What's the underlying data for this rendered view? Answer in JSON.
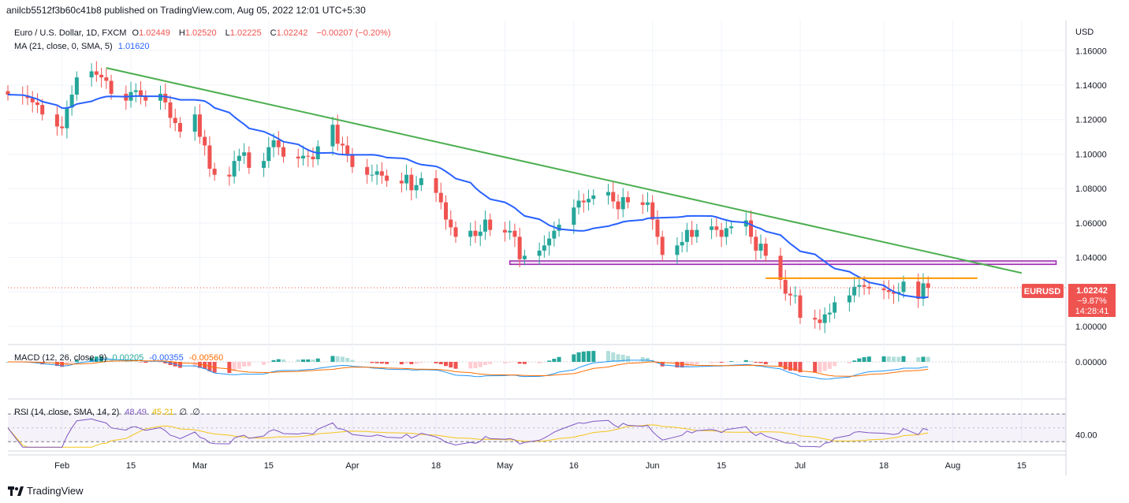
{
  "header": {
    "published": "anilcb5512f3b60c41b8 published on TradingView.com, Aug 05, 2022 12:01 UTC+5:30"
  },
  "legend": {
    "symbol": "Euro / U.S. Dollar, 1D, FXCM",
    "o_label": "O",
    "o_value": "1.02449",
    "h_label": "H",
    "h_value": "1.02520",
    "l_label": "L",
    "l_value": "1.02225",
    "c_label": "C",
    "c_value": "1.02242",
    "change": "−0.00207 (−0.20%)",
    "ma_label": "MA (21, close, 0, SMA, 5)",
    "ma_value": "1.01620",
    "macd_label": "MACD (12, 26, close, 9)",
    "macd_v1": "0.00205",
    "macd_v2": "-0.00355",
    "macd_v3": "-0.00560",
    "rsi_label": "RSI (14, close, SMA, 14, 2)",
    "rsi_v1": "48.49",
    "rsi_v2": "45.21",
    "rsi_v3": "∅",
    "rsi_v4": "∅"
  },
  "price_badge": {
    "symbol": "EURUSD",
    "price": "1.02242",
    "pct": "−9.87%",
    "timer": "14:28:41"
  },
  "footer": {
    "brand": "TradingView"
  },
  "colors": {
    "up": "#26a69a",
    "down": "#ef5350",
    "ma": "#2962ff",
    "trend": "#4caf50",
    "support": "#9c27b0",
    "resistance": "#ff9800",
    "rsi": "#7e57c2",
    "rsi_ma": "#f5c518",
    "macd_signal": "#ff6d00"
  },
  "chart_data": {
    "type": "candlestick",
    "title": "Euro / U.S. Dollar, 1D, FXCM",
    "currency": "USD",
    "y_axis_ticks": [
      "1.16000",
      "1.14000",
      "1.12000",
      "1.10000",
      "1.08000",
      "1.06000",
      "1.04000",
      "1.02000",
      "1.00000"
    ],
    "ylim": [
      0.9895,
      1.1775
    ],
    "x_axis_ticks": [
      {
        "label": "Feb",
        "date": "2022-02-01"
      },
      {
        "label": "15",
        "date": "2022-02-15"
      },
      {
        "label": "Mar",
        "date": "2022-03-01"
      },
      {
        "label": "15",
        "date": "2022-03-15"
      },
      {
        "label": "Apr",
        "date": "2022-04-01"
      },
      {
        "label": "18",
        "date": "2022-04-18"
      },
      {
        "label": "May",
        "date": "2022-05-02"
      },
      {
        "label": "16",
        "date": "2022-05-16"
      },
      {
        "label": "Jun",
        "date": "2022-06-01"
      },
      {
        "label": "15",
        "date": "2022-06-15"
      },
      {
        "label": "Jul",
        "date": "2022-07-01"
      },
      {
        "label": "18",
        "date": "2022-07-18"
      },
      {
        "label": "Aug",
        "date": "2022-08-01"
      },
      {
        "label": "15",
        "date": "2022-08-15"
      }
    ],
    "date_range": [
      "2022-01-21",
      "2022-08-24"
    ],
    "closes": [
      1.1345,
      1.134,
      1.1325,
      1.13,
      1.1285,
      1.123,
      1.116,
      1.115,
      1.127,
      1.1345,
      1.1445,
      1.148,
      1.146,
      1.1445,
      1.1425,
      1.135,
      1.131,
      1.136,
      1.137,
      1.1335,
      1.131,
      1.135,
      1.13,
      1.121,
      1.118,
      1.113,
      1.123,
      1.11,
      1.105,
      1.0915,
      1.088,
      1.087,
      1.096,
      1.099,
      1.101,
      1.092,
      1.096,
      1.104,
      1.108,
      1.104,
      1.0985,
      1.0975,
      1.099,
      1.0985,
      1.097,
      1.1045,
      1.117,
      1.106,
      1.105,
      1.1,
      1.0925,
      1.088,
      1.088,
      1.09,
      1.0875,
      1.0845,
      1.083,
      1.088,
      1.079,
      1.082,
      1.086,
      1.0775,
      1.072,
      1.062,
      1.0575,
      1.052,
      1.0555,
      1.0525,
      1.055,
      1.062,
      1.056,
      1.0545,
      1.0555,
      1.052,
      1.039,
      1.041,
      1.044,
      1.047,
      1.051,
      1.0555,
      1.059,
      1.069,
      1.073,
      1.072,
      1.074,
      1.076,
      1.078,
      1.0725,
      1.068,
      1.075,
      1.072,
      1.0705,
      1.072,
      1.062,
      1.052,
      1.0415,
      1.047,
      1.049,
      1.056,
      1.052,
      1.056,
      1.058,
      1.056,
      1.052,
      1.057,
      1.058,
      1.0615,
      1.052,
      1.044,
      1.048,
      1.041,
      1.027,
      1.019,
      1.018,
      1.018,
      1.005,
      1.004,
      1.002,
      1.007,
      1.008,
      1.014,
      1.018,
      1.023,
      1.024,
      1.023,
      1.022,
      1.021,
      1.02,
      1.019,
      1.02,
      1.026,
      1.016,
      1.025,
      1.0224
    ],
    "ma21_last": 1.0162,
    "trendline": {
      "from": {
        "date": "2022-02-10",
        "price": 1.15
      },
      "to": {
        "date": "2022-08-15",
        "price": 1.031
      }
    },
    "support_zone": [
      1.036,
      1.038
    ],
    "resistance_level": 1.028,
    "last_price": 1.02242,
    "macd": {
      "macd": 0.00205,
      "signal": -0.00355,
      "hist": -0.0056,
      "axis_tick": "0.00000"
    },
    "rsi": {
      "value": 48.49,
      "ma": 45.21,
      "upper": 70,
      "lower": 30,
      "axis_tick": "40.00"
    }
  }
}
